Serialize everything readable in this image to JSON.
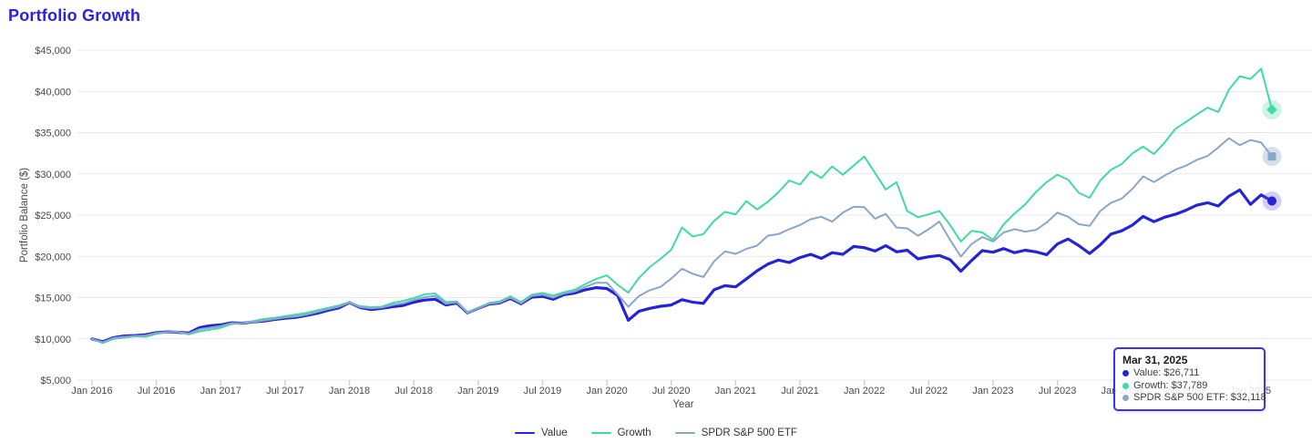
{
  "page": {
    "title": "Portfolio Growth"
  },
  "chart_data": {
    "type": "line",
    "title": "Portfolio Growth",
    "xlabel": "Year",
    "ylabel": "Portfolio Balance ($)",
    "x_start": "Jan 2016",
    "x_end": "Mar 2025",
    "points_per_series": 111,
    "ylim": [
      5000,
      45000
    ],
    "grid": "horizontal",
    "legend_position": "bottom",
    "y_axis": {
      "title": "Portfolio Balance ($)",
      "ticks": [
        {
          "label": "$5,000",
          "value": 5000
        },
        {
          "label": "$10,000",
          "value": 10000
        },
        {
          "label": "$15,000",
          "value": 15000
        },
        {
          "label": "$20,000",
          "value": 20000
        },
        {
          "label": "$25,000",
          "value": 25000
        },
        {
          "label": "$30,000",
          "value": 30000
        },
        {
          "label": "$35,000",
          "value": 35000
        },
        {
          "label": "$40,000",
          "value": 40000
        },
        {
          "label": "$45,000",
          "value": 45000
        }
      ]
    },
    "x_axis": {
      "title": "Year",
      "ticks": [
        {
          "label": "Jan 2016",
          "month": 0
        },
        {
          "label": "Jul 2016",
          "month": 6
        },
        {
          "label": "Jan 2017",
          "month": 12
        },
        {
          "label": "Jul 2017",
          "month": 18
        },
        {
          "label": "Jan 2018",
          "month": 24
        },
        {
          "label": "Jul 2018",
          "month": 30
        },
        {
          "label": "Jan 2019",
          "month": 36
        },
        {
          "label": "Jul 2019",
          "month": 42
        },
        {
          "label": "Jan 2020",
          "month": 48
        },
        {
          "label": "Jul 2020",
          "month": 54
        },
        {
          "label": "Jan 2021",
          "month": 60
        },
        {
          "label": "Jul 2021",
          "month": 66
        },
        {
          "label": "Jan 2022",
          "month": 72
        },
        {
          "label": "Jul 2022",
          "month": 78
        },
        {
          "label": "Jan 2023",
          "month": 84
        },
        {
          "label": "Jul 2023",
          "month": 90
        },
        {
          "label": "Jan 2024",
          "month": 96
        },
        {
          "label": "Jul 2024",
          "month": 102
        },
        {
          "label": "Jan 2025",
          "month": 108
        }
      ]
    },
    "series": [
      {
        "name": "Value",
        "color": "#2424d6",
        "halo_color": "rgba(90,80,235,0.28)",
        "stroke_width": 3.2,
        "marker": "circle",
        "final_value": 26711,
        "values": [
          10000,
          9650,
          10150,
          10350,
          10400,
          10500,
          10750,
          10850,
          10800,
          10700,
          11350,
          11600,
          11700,
          11950,
          11900,
          12050,
          12150,
          12350,
          12500,
          12600,
          12850,
          13100,
          13450,
          13750,
          14400,
          13800,
          13550,
          13700,
          13900,
          14050,
          14450,
          14700,
          14800,
          14100,
          14350,
          13150,
          13700,
          14200,
          14350,
          14900,
          14250,
          15050,
          15150,
          14800,
          15350,
          15550,
          15950,
          16200,
          16100,
          15250,
          12250,
          13350,
          13700,
          13950,
          14100,
          14750,
          14450,
          14300,
          15950,
          16450,
          16300,
          17250,
          18250,
          19050,
          19550,
          19250,
          19850,
          20250,
          19750,
          20450,
          20250,
          21200,
          21050,
          20650,
          21300,
          20550,
          20750,
          19700,
          19950,
          20100,
          19600,
          18200,
          19500,
          20700,
          20500,
          20950,
          20450,
          20750,
          20550,
          20200,
          21500,
          22100,
          21300,
          20350,
          21400,
          22700,
          23100,
          23800,
          24850,
          24200,
          24750,
          25100,
          25600,
          26200,
          26500,
          26100,
          27300,
          28050,
          26300,
          27450,
          26711
        ]
      },
      {
        "name": "Growth",
        "color": "#41d9a6",
        "halo_color": "rgba(65,217,166,0.28)",
        "stroke_width": 2,
        "marker": "diamond",
        "final_value": 37789,
        "values": [
          10000,
          9500,
          10000,
          10150,
          10300,
          10250,
          10600,
          10800,
          10850,
          10550,
          10900,
          11100,
          11350,
          11800,
          11900,
          12150,
          12400,
          12550,
          12750,
          12950,
          13150,
          13450,
          13750,
          14050,
          14450,
          13950,
          13850,
          13900,
          14350,
          14600,
          14950,
          15400,
          15500,
          14450,
          14550,
          13250,
          13750,
          14350,
          14550,
          15150,
          14450,
          15350,
          15550,
          15250,
          15650,
          15950,
          16650,
          17250,
          17700,
          16550,
          15600,
          17400,
          18700,
          19700,
          20800,
          23500,
          22400,
          22700,
          24300,
          25400,
          25100,
          26700,
          25700,
          26600,
          27800,
          29200,
          28700,
          30300,
          29500,
          30900,
          29900,
          31000,
          32100,
          30100,
          28100,
          29000,
          25500,
          24750,
          25100,
          25500,
          23800,
          21800,
          23100,
          22900,
          22000,
          23900,
          25200,
          26300,
          27800,
          29000,
          29900,
          29300,
          27700,
          27100,
          29200,
          30500,
          31200,
          32500,
          33300,
          32400,
          33800,
          35450,
          36300,
          37200,
          38030,
          37500,
          40200,
          41840,
          41500,
          42760,
          37789
        ]
      },
      {
        "name": "SPDR S&P 500 ETF",
        "color": "#8aa6c9",
        "halo_color": "rgba(138,166,201,0.35)",
        "stroke_width": 2,
        "marker": "square",
        "final_value": 32118,
        "values": [
          10000,
          9600,
          10100,
          10250,
          10350,
          10400,
          10700,
          10820,
          10820,
          10620,
          11150,
          11350,
          11550,
          11900,
          11900,
          12050,
          12200,
          12400,
          12600,
          12700,
          12950,
          13250,
          13600,
          13900,
          14400,
          13850,
          13700,
          13800,
          14100,
          14300,
          14700,
          15050,
          15200,
          14250,
          14450,
          13150,
          13700,
          14250,
          14400,
          15000,
          14300,
          15200,
          15350,
          15000,
          15500,
          15750,
          16300,
          16800,
          16800,
          15400,
          13900,
          15200,
          15900,
          16300,
          17300,
          18500,
          17900,
          17500,
          19400,
          20600,
          20300,
          20900,
          21300,
          22500,
          22700,
          23300,
          23800,
          24500,
          24800,
          24200,
          25300,
          26000,
          25960,
          24570,
          25140,
          23500,
          23400,
          22500,
          23300,
          24210,
          22000,
          19970,
          21500,
          22350,
          21800,
          22900,
          23300,
          23000,
          23200,
          24100,
          25300,
          24800,
          23900,
          23700,
          25500,
          26500,
          27000,
          28200,
          29700,
          29000,
          29800,
          30500,
          31000,
          31700,
          32170,
          33200,
          34330,
          33480,
          34100,
          33800,
          32118
        ]
      }
    ]
  },
  "tooltip": {
    "date": "Mar 31, 2025",
    "items": [
      {
        "label": "Value",
        "value": "$26,711",
        "color": "#2424d6"
      },
      {
        "label": "Growth",
        "value": "$37,789",
        "color": "#41d9a6"
      },
      {
        "label": "SPDR S&P 500 ETF",
        "value": "$32,118",
        "color": "#8aa6c9"
      }
    ]
  },
  "style": {
    "title_color": "#2a20ea",
    "grid_color": "#e8e8e8",
    "tick_mark_color": "#c3cfe4",
    "axis_text_color": "#4a4a4a",
    "tooltip_border_color": "#3934ec"
  }
}
